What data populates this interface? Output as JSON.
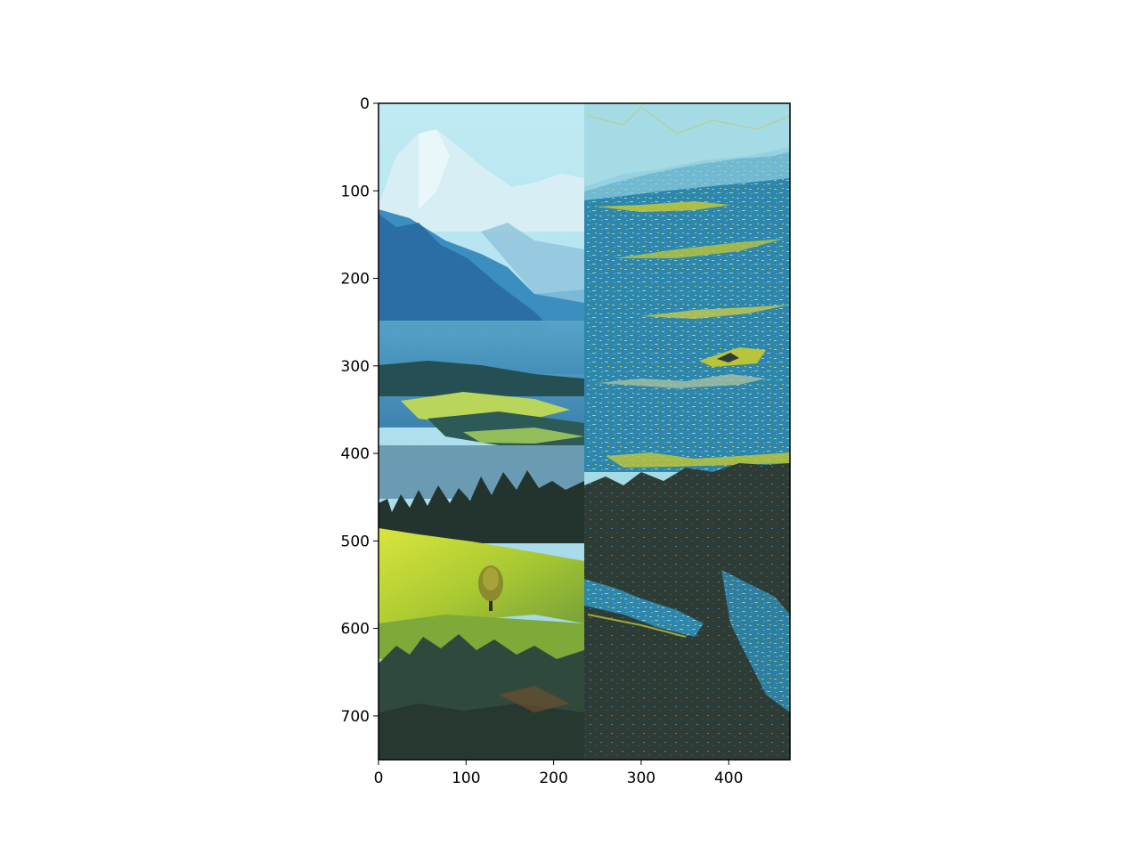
{
  "figure": {
    "x_ticks": [
      "0",
      "100",
      "200",
      "300",
      "400"
    ],
    "y_ticks": [
      "0",
      "100",
      "200",
      "300",
      "400",
      "500",
      "600",
      "700"
    ],
    "x_range": [
      0,
      470
    ],
    "y_range": [
      0,
      750
    ],
    "panels": {
      "left": {
        "x_range": [
          0,
          235
        ],
        "content": "original-landscape"
      },
      "right": {
        "x_range": [
          235,
          470
        ],
        "content": "color-quantized-landscape"
      }
    },
    "palette": {
      "sky": "#a4dbe4",
      "teal": "#2e86ab",
      "light_blue": "#8ecfe0",
      "yellow_green": "#b9c43b",
      "dark_green": "#2f3c36",
      "meadow": "#b8d33a"
    }
  }
}
